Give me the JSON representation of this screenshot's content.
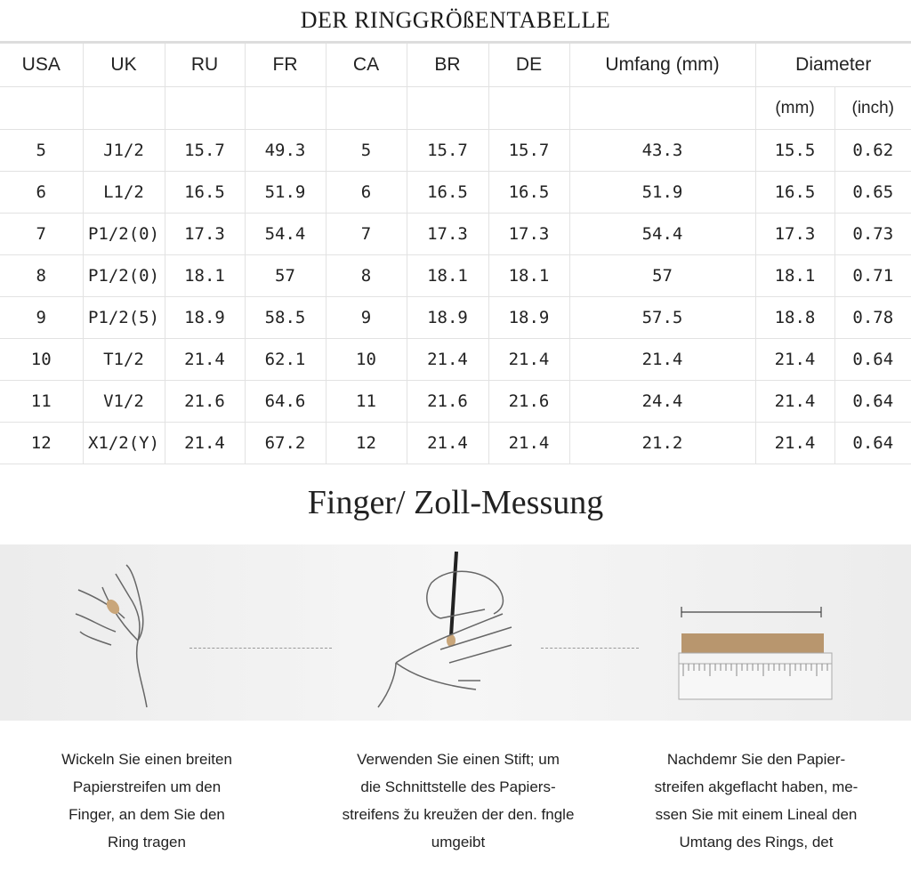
{
  "title": "DER RINGGRÖßENTABELLE",
  "table": {
    "headers": [
      "USA",
      "UK",
      "RU",
      "FR",
      "CA",
      "BR",
      "DE",
      "Umfang (mm)",
      "Diameter"
    ],
    "subheaders": [
      "(mm)",
      "(inch)"
    ],
    "rows": [
      [
        "5",
        "J1/2",
        "15.7",
        "49.3",
        "5",
        "15.7",
        "15.7",
        "43.3",
        "15.5",
        "0.62"
      ],
      [
        "6",
        "L1/2",
        "16.5",
        "51.9",
        "6",
        "16.5",
        "16.5",
        "51.9",
        "16.5",
        "0.65"
      ],
      [
        "7",
        "P1/2(0)",
        "17.3",
        "54.4",
        "7",
        "17.3",
        "17.3",
        "54.4",
        "17.3",
        "0.73"
      ],
      [
        "8",
        "P1/2(0)",
        "18.1",
        "57",
        "8",
        "18.1",
        "18.1",
        "57",
        "18.1",
        "0.71"
      ],
      [
        "9",
        "P1/2(5)",
        "18.9",
        "58.5",
        "9",
        "18.9",
        "18.9",
        "57.5",
        "18.8",
        "0.78"
      ],
      [
        "10",
        "T1/2",
        "21.4",
        "62.1",
        "10",
        "21.4",
        "21.4",
        "21.4",
        "21.4",
        "0.64"
      ],
      [
        "11",
        "V1/2",
        "21.6",
        "64.6",
        "11",
        "21.6",
        "21.6",
        "24.4",
        "21.4",
        "0.64"
      ],
      [
        "12",
        "X1/2(Y)",
        "21.4",
        "67.2",
        "12",
        "21.4",
        "21.4",
        "21.2",
        "21.4",
        "0.64"
      ]
    ]
  },
  "section_title": "Finger/ Zoll-Messung",
  "steps": [
    {
      "icon": "hand-wrap-icon",
      "lines": [
        "Wickeln Sie einen breiten",
        "Papierstreifen um den",
        "Finger, an dem Sie den",
        "Ring tragen"
      ]
    },
    {
      "icon": "hand-pen-icon",
      "lines": [
        "Verwenden Sie einen Stift; um",
        "die Schnittstelle des Papiers-",
        "streifens žu kreužen der den. fngle",
        "umgeibt"
      ]
    },
    {
      "icon": "ruler-icon",
      "lines": [
        "Nachdemr  Sie den Papier-",
        "streifen akgeflacht haben, me-",
        "ssen Sie mit einem Lineal den",
        "Umtang des Rings, det"
      ]
    }
  ]
}
